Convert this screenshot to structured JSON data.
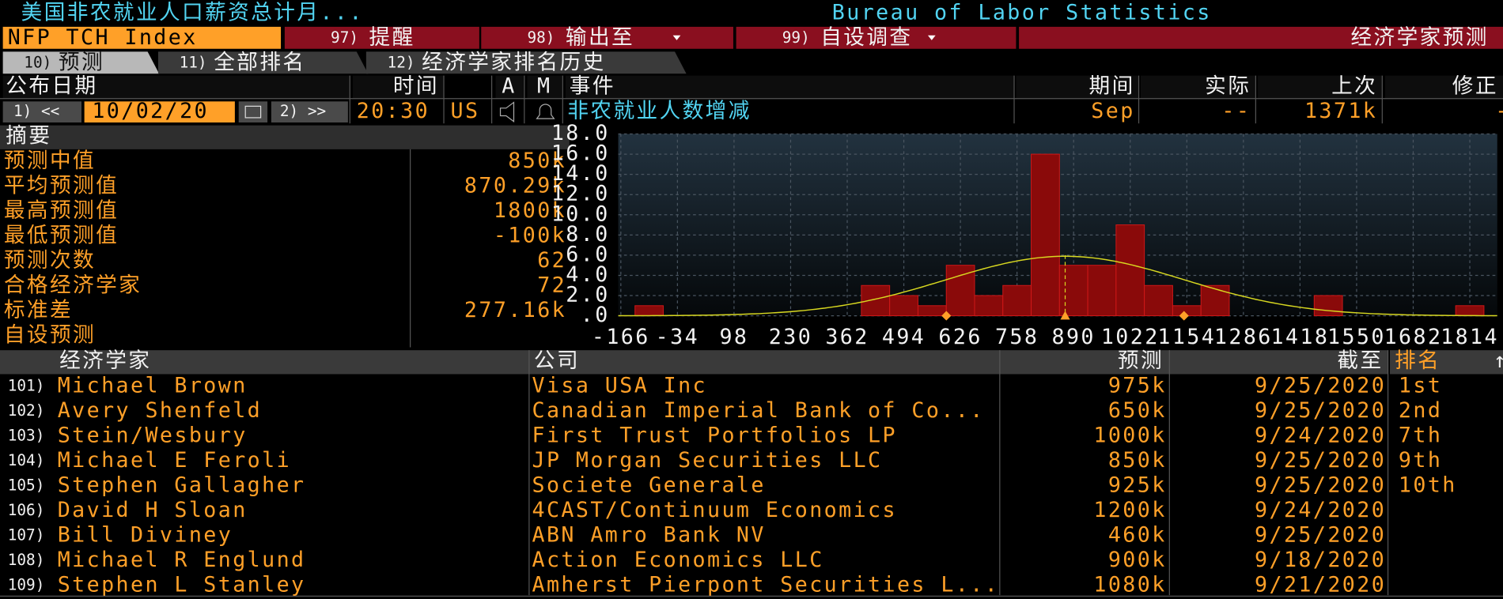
{
  "header": {
    "title": "美国非农就业人口薪资总计月...",
    "source": "Bureau of Labor Statistics"
  },
  "toolbar": {
    "ticker": "NFP TCH Index",
    "items": [
      {
        "num": "97)",
        "label": "提醒"
      },
      {
        "num": "98)",
        "label": "输出至"
      },
      {
        "num": "99)",
        "label": "自设调查"
      }
    ],
    "right": "经济学家预测"
  },
  "tabs": [
    {
      "num": "10)",
      "label": "预测"
    },
    {
      "num": "11)",
      "label": "全部排名"
    },
    {
      "num": "12)",
      "label": "经济学家排名历史"
    }
  ],
  "event": {
    "labels": {
      "date": "公布日期",
      "time": "时间",
      "a": "A",
      "m": "M",
      "event": "事件",
      "period": "期间",
      "actual": "实际",
      "prior": "上次",
      "revised": "修正"
    },
    "prev": "1) <<",
    "date": "10/02/20",
    "next": "2) >>",
    "time": "20:30",
    "country": "US",
    "name": "非农就业人数增减",
    "period": "Sep",
    "actual": "--",
    "prior": "1371k",
    "revised": "-"
  },
  "summary": {
    "title": "摘要",
    "rows": [
      {
        "label": "预测中值",
        "value": "850k"
      },
      {
        "label": "平均预测值",
        "value": "870.29k"
      },
      {
        "label": "最高预测值",
        "value": "1800k"
      },
      {
        "label": "最低预测值",
        "value": "-100k"
      },
      {
        "label": "预测次数",
        "value": "62"
      },
      {
        "label": "合格经济学家",
        "value": "72"
      },
      {
        "label": "标准差",
        "value": "277.16k"
      },
      {
        "label": "自设预测"
      }
    ]
  },
  "histogram": {
    "type": "histogram",
    "bins": [
      -133,
      -67,
      -1,
      65,
      131,
      197,
      263,
      329,
      395,
      461,
      527,
      593,
      659,
      725,
      791,
      857,
      923,
      989,
      1055,
      1121,
      1187,
      1253,
      1319,
      1385,
      1451,
      1517,
      1583,
      1649,
      1715,
      1781,
      1847
    ],
    "counts": [
      1,
      0,
      0,
      0,
      0,
      0,
      0,
      0,
      3,
      2,
      1,
      5,
      2,
      3,
      16,
      5,
      5,
      9,
      3,
      1,
      3,
      0,
      0,
      0,
      2,
      0,
      0,
      0,
      0,
      1
    ],
    "color": "#8a0a0a",
    "xlim": [
      -172,
      1878
    ],
    "xticks": [
      -166,
      -34,
      98,
      230,
      362,
      494,
      626,
      758,
      890,
      1022,
      1154,
      1286,
      1418,
      1550,
      1682,
      1814
    ],
    "ylim": [
      0,
      18
    ],
    "yticks": [
      {
        "value": 0,
        "label": ".0"
      },
      {
        "value": 2,
        "label": "2.0"
      },
      {
        "value": 4,
        "label": "4.0"
      },
      {
        "value": 6,
        "label": "6.0"
      },
      {
        "value": 8,
        "label": "8.0"
      },
      {
        "value": 10,
        "label": "10.0"
      },
      {
        "value": 12,
        "label": "12.0"
      },
      {
        "value": 14,
        "label": "14.0"
      },
      {
        "value": 16,
        "label": "16.0"
      },
      {
        "value": 18,
        "label": "18.0"
      }
    ],
    "grid": true,
    "normal_curve": {
      "mean": 870.29,
      "sd": 277.16,
      "color": "#d8d820"
    }
  },
  "table": {
    "columns": [
      "经济学家",
      "公司",
      "预测",
      "截至",
      "排名"
    ],
    "sort_indicator": "↑",
    "rows": [
      [
        "101)",
        "Michael Brown",
        "Visa USA Inc",
        "975k",
        "9/25/2020",
        "1st"
      ],
      [
        "102)",
        "Avery Shenfeld",
        "Canadian Imperial Bank of Co...",
        "650k",
        "9/25/2020",
        "2nd"
      ],
      [
        "103)",
        "Stein/Wesbury",
        "First Trust Portfolios LP",
        "1000k",
        "9/24/2020",
        "7th"
      ],
      [
        "104)",
        "Michael E Feroli",
        "JP Morgan Securities LLC",
        "850k",
        "9/25/2020",
        "9th"
      ],
      [
        "105)",
        "Stephen Gallagher",
        "Societe Generale",
        "925k",
        "9/25/2020",
        "10th"
      ],
      [
        "106)",
        "David H Sloan",
        "4CAST/Continuum Economics",
        "1200k",
        "9/24/2020"
      ],
      [
        "107)",
        "Bill Diviney",
        "ABN Amro Bank NV",
        "460k",
        "9/25/2020"
      ],
      [
        "108)",
        "Michael R Englund",
        "Action Economics LLC",
        "900k",
        "9/18/2020"
      ],
      [
        "109)",
        "Stephen L Stanley",
        "Amherst Pierpont Securities L...",
        "1080k",
        "9/21/2020"
      ]
    ]
  }
}
